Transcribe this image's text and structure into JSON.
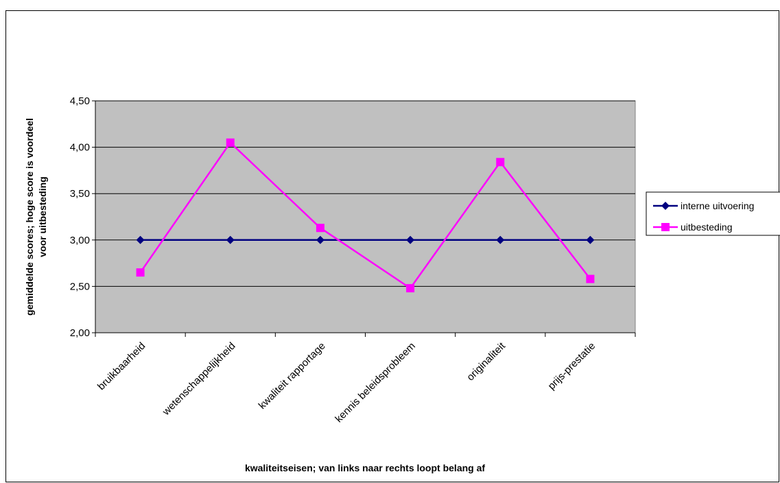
{
  "chart_data": {
    "type": "line",
    "title": "",
    "xlabel": "kwaliteitseisen; van links naar rechts loopt belang af",
    "ylabel_line1": "gemiddelde scores; hoge score is voordeel",
    "ylabel_line2": "voor uitbesteding",
    "categories": [
      "bruikbaarheid",
      "wetenschappelijkheid",
      "kwaliteit rapportage",
      "kennis beleidsprobleem",
      "originaliteit",
      "prijs-prestatie"
    ],
    "ylim": [
      2.0,
      4.5
    ],
    "yticks": [
      "2,00",
      "2,50",
      "3,00",
      "3,50",
      "4,00",
      "4,50"
    ],
    "grid": true,
    "plot_background": "#c0c0c0",
    "legend_position": "right",
    "series": [
      {
        "name": "interne uitvoering",
        "color": "#000080",
        "marker": "diamond",
        "values": [
          3.0,
          3.0,
          3.0,
          3.0,
          3.0,
          3.0
        ]
      },
      {
        "name": "uitbesteding",
        "color": "#ff00ff",
        "marker": "square",
        "values": [
          2.65,
          4.05,
          3.13,
          2.48,
          3.84,
          2.58
        ]
      }
    ]
  }
}
